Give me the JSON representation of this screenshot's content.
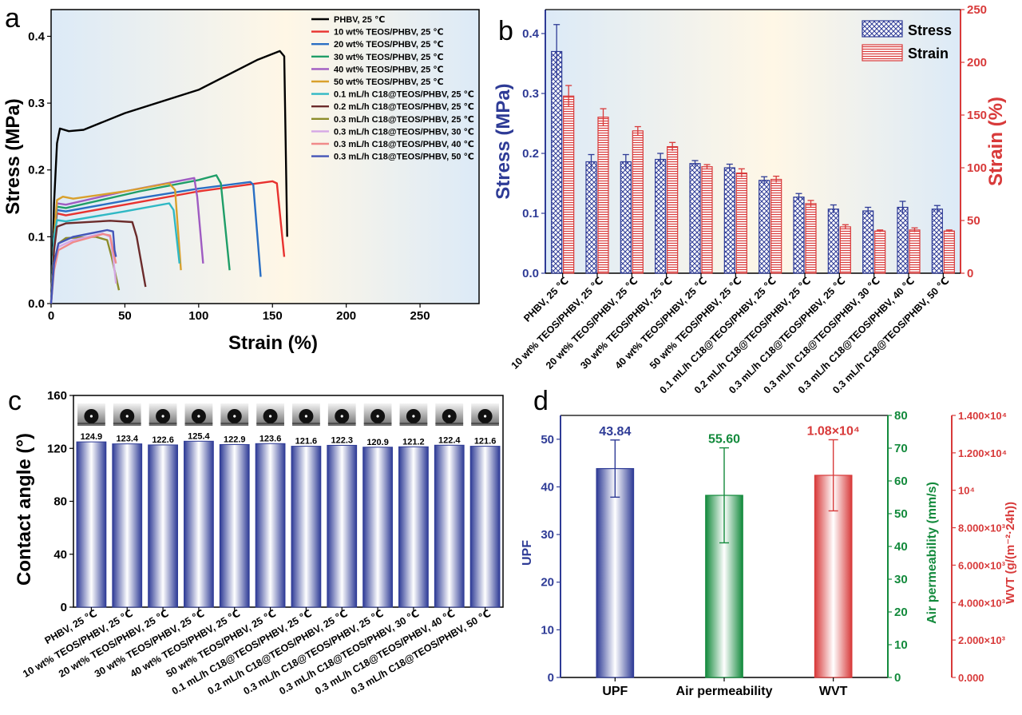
{
  "panel_letters": [
    "a",
    "b",
    "c",
    "d"
  ],
  "colors": {
    "blue": "#2e3b96",
    "red": "#d83a3a",
    "green": "#138a3c",
    "black": "#000000"
  },
  "chart_data": [
    {
      "panel": "a",
      "type": "line",
      "xlabel": "Strain (%)",
      "ylabel": "Stress (MPa)",
      "xlim": [
        0,
        290
      ],
      "ylim": [
        0,
        0.44
      ],
      "xticks": [
        "0",
        "50",
        "100",
        "150",
        "200",
        "250"
      ],
      "xtick_values": [
        0,
        50,
        100,
        150,
        200,
        250
      ],
      "yticks": [
        "0.0",
        "0.1",
        "0.2",
        "0.3",
        "0.4"
      ],
      "ytick_values": [
        0,
        0.1,
        0.2,
        0.3,
        0.4
      ],
      "legend_position": "top-right",
      "series": [
        {
          "name": "PHBV, 25 ℃",
          "color": "#000000",
          "points": [
            [
              0,
              0
            ],
            [
              2,
              0.15
            ],
            [
              4,
              0.24
            ],
            [
              6,
              0.262
            ],
            [
              12,
              0.258
            ],
            [
              22,
              0.26
            ],
            [
              50,
              0.285
            ],
            [
              100,
              0.32
            ],
            [
              140,
              0.365
            ],
            [
              155,
              0.378
            ],
            [
              158,
              0.37
            ],
            [
              160,
              0.1
            ]
          ]
        },
        {
          "name": "10 wt% TEOS/PHBV, 25 ℃",
          "color": "#e8322f",
          "points": [
            [
              0,
              0
            ],
            [
              2,
              0.1
            ],
            [
              4,
              0.135
            ],
            [
              10,
              0.132
            ],
            [
              50,
              0.148
            ],
            [
              100,
              0.168
            ],
            [
              150,
              0.183
            ],
            [
              153,
              0.18
            ],
            [
              158,
              0.07
            ]
          ]
        },
        {
          "name": "20 wt% TEOS/PHBV, 25 ℃",
          "color": "#2a6fc4",
          "points": [
            [
              0,
              0
            ],
            [
              2,
              0.1
            ],
            [
              4,
              0.14
            ],
            [
              10,
              0.138
            ],
            [
              60,
              0.158
            ],
            [
              100,
              0.172
            ],
            [
              135,
              0.182
            ],
            [
              137,
              0.178
            ],
            [
              142,
              0.04
            ]
          ]
        },
        {
          "name": "30 wt% TEOS/PHBV, 25 ℃",
          "color": "#1f9e68",
          "points": [
            [
              0,
              0
            ],
            [
              2,
              0.1
            ],
            [
              4,
              0.145
            ],
            [
              10,
              0.143
            ],
            [
              60,
              0.168
            ],
            [
              100,
              0.185
            ],
            [
              112,
              0.192
            ],
            [
              115,
              0.18
            ],
            [
              121,
              0.05
            ]
          ]
        },
        {
          "name": "40 wt% TEOS/PHBV, 25 ℃",
          "color": "#9f5bc2",
          "points": [
            [
              0,
              0
            ],
            [
              2,
              0.1
            ],
            [
              4,
              0.15
            ],
            [
              10,
              0.148
            ],
            [
              50,
              0.168
            ],
            [
              90,
              0.185
            ],
            [
              97,
              0.188
            ],
            [
              99,
              0.16
            ],
            [
              103,
              0.06
            ]
          ]
        },
        {
          "name": "50 wt% TEOS/PHBV, 25 ℃",
          "color": "#d9a02c",
          "points": [
            [
              0,
              0
            ],
            [
              2,
              0.1
            ],
            [
              4,
              0.155
            ],
            [
              8,
              0.16
            ],
            [
              15,
              0.157
            ],
            [
              50,
              0.168
            ],
            [
              80,
              0.18
            ],
            [
              84,
              0.17
            ],
            [
              88,
              0.05
            ]
          ]
        },
        {
          "name": "0.1 mL/h C18@TEOS/PHBV, 25 ℃",
          "color": "#2fb8c4",
          "points": [
            [
              0,
              0
            ],
            [
              2,
              0.1
            ],
            [
              4,
              0.125
            ],
            [
              10,
              0.123
            ],
            [
              50,
              0.138
            ],
            [
              80,
              0.15
            ],
            [
              83,
              0.14
            ],
            [
              87,
              0.06
            ]
          ]
        },
        {
          "name": "0.2 mL/h C18@TEOS/PHBV, 25 ℃",
          "color": "#6b2b2b",
          "points": [
            [
              0,
              0
            ],
            [
              2,
              0.08
            ],
            [
              4,
              0.115
            ],
            [
              10,
              0.12
            ],
            [
              40,
              0.124
            ],
            [
              55,
              0.122
            ],
            [
              58,
              0.1
            ],
            [
              64,
              0.025
            ]
          ]
        },
        {
          "name": "0.3 mL/h C18@TEOS/PHBV, 25 ℃",
          "color": "#8c8c2a",
          "points": [
            [
              0,
              0
            ],
            [
              2,
              0.06
            ],
            [
              5,
              0.09
            ],
            [
              10,
              0.098
            ],
            [
              30,
              0.1
            ],
            [
              38,
              0.095
            ],
            [
              41,
              0.07
            ],
            [
              46,
              0.02
            ]
          ]
        },
        {
          "name": "0.3 mL/h C18@TEOS/PHBV, 30 ℃",
          "color": "#d5a8e6",
          "points": [
            [
              0,
              0
            ],
            [
              2,
              0.06
            ],
            [
              5,
              0.085
            ],
            [
              15,
              0.095
            ],
            [
              35,
              0.105
            ],
            [
              40,
              0.1
            ],
            [
              42,
              0.07
            ],
            [
              44,
              0.03
            ]
          ]
        },
        {
          "name": "0.3 mL/h C18@TEOS/PHBV, 40 ℃",
          "color": "#f08a8a",
          "points": [
            [
              0,
              0
            ],
            [
              2,
              0.05
            ],
            [
              5,
              0.08
            ],
            [
              15,
              0.092
            ],
            [
              35,
              0.104
            ],
            [
              40,
              0.102
            ],
            [
              42,
              0.08
            ],
            [
              44,
              0.06
            ]
          ]
        },
        {
          "name": "0.3 mL/h C18@TEOS/PHBV, 50 ℃",
          "color": "#4455b8",
          "points": [
            [
              0,
              0
            ],
            [
              2,
              0.06
            ],
            [
              5,
              0.09
            ],
            [
              15,
              0.1
            ],
            [
              38,
              0.11
            ],
            [
              42,
              0.108
            ],
            [
              43,
              0.08
            ],
            [
              44,
              0.07
            ]
          ]
        }
      ]
    },
    {
      "panel": "b",
      "type": "bar",
      "ylabel": "Stress (MPa)",
      "y2label": "Strain (%)",
      "ylim": [
        0,
        0.44
      ],
      "y2lim": [
        0,
        250
      ],
      "yticks": [
        "0.0",
        "0.1",
        "0.2",
        "0.3",
        "0.4"
      ],
      "ytick_values": [
        0,
        0.1,
        0.2,
        0.3,
        0.4
      ],
      "y2ticks": [
        "0",
        "50",
        "100",
        "150",
        "200",
        "250"
      ],
      "y2tick_values": [
        0,
        50,
        100,
        150,
        200,
        250
      ],
      "legend_position": "top-right",
      "categories": [
        "PHBV, 25 ℃",
        "10 wt% TEOS/PHBV, 25 ℃",
        "20 wt% TEOS/PHBV, 25 ℃",
        "30 wt% TEOS/PHBV, 25 ℃",
        "40 wt% TEOS/PHBV, 25 ℃",
        "50 wt% TEOS/PHBV, 25 ℃",
        "0.1 mL/h C18@TEOS/PHBV, 25 ℃",
        "0.2 mL/h C18@TEOS/PHBV, 25 ℃",
        "0.3 mL/h C18@TEOS/PHBV, 25 ℃",
        "0.3 mL/h C18@TEOS/PHBV, 30 ℃",
        "0.3 mL/h C18@TEOS/PHBV, 40 ℃",
        "0.3 mL/h C18@TEOS/PHBV, 50 ℃"
      ],
      "series": [
        {
          "name": "Stress",
          "axis": "left",
          "values": [
            0.37,
            0.186,
            0.186,
            0.19,
            0.183,
            0.176,
            0.155,
            0.127,
            0.107,
            0.104,
            0.11,
            0.107
          ],
          "errors": [
            0.045,
            0.012,
            0.012,
            0.01,
            0.005,
            0.006,
            0.006,
            0.006,
            0.007,
            0.006,
            0.01,
            0.006
          ]
        },
        {
          "name": "Strain",
          "axis": "right",
          "values": [
            168,
            148,
            135,
            120,
            101,
            95,
            89,
            66,
            44,
            40,
            41,
            40
          ],
          "errors": [
            10,
            8,
            4,
            4,
            2,
            4,
            3,
            3,
            2,
            1,
            2,
            1
          ]
        }
      ]
    },
    {
      "panel": "c",
      "type": "bar",
      "ylabel": "Contact angle (°)",
      "ylim": [
        0,
        160
      ],
      "yticks": [
        "0",
        "40",
        "80",
        "120",
        "160"
      ],
      "ytick_values": [
        0,
        40,
        80,
        120,
        160
      ],
      "categories": [
        "PHBV, 25 ℃",
        "10 wt% TEOS/PHBV, 25 ℃",
        "20 wt% TEOS/PHBV, 25 ℃",
        "30 wt% TEOS/PHBV, 25 ℃",
        "40 wt% TEOS/PHBV, 25 ℃",
        "50 wt% TEOS/PHBV, 25 ℃",
        "0.1 mL/h C18@TEOS/PHBV, 25 ℃",
        "0.2 mL/h C18@TEOS/PHBV, 25 ℃",
        "0.3 mL/h C18@TEOS/PHBV, 25 ℃",
        "0.3 mL/h C18@TEOS/PHBV, 30 ℃",
        "0.3 mL/h C18@TEOS/PHBV, 40 ℃",
        "0.3 mL/h C18@TEOS/PHBV, 50 ℃"
      ],
      "values": [
        124.9,
        123.4,
        122.6,
        125.4,
        122.9,
        123.6,
        121.6,
        122.3,
        120.9,
        121.2,
        122.4,
        121.6
      ],
      "value_labels": [
        "124.9",
        "123.4",
        "122.6",
        "125.4",
        "122.9",
        "123.6",
        "121.6",
        "122.3",
        "120.9",
        "121.2",
        "122.4",
        "121.6"
      ]
    },
    {
      "panel": "d",
      "type": "bar",
      "categories": [
        "UPF",
        "Air permeability",
        "WVT"
      ],
      "axes": [
        {
          "label": "UPF",
          "lim": [
            0,
            55
          ],
          "ticks": [
            "0",
            "10",
            "20",
            "30",
            "40",
            "50"
          ],
          "tick_values": [
            0,
            10,
            20,
            30,
            40,
            50
          ],
          "color": "#2e3b96"
        },
        {
          "label": "Air permeability (mm/s)",
          "lim": [
            0,
            80
          ],
          "ticks": [
            "0",
            "10",
            "20",
            "30",
            "40",
            "50",
            "60",
            "70",
            "80"
          ],
          "tick_values": [
            0,
            10,
            20,
            30,
            40,
            50,
            60,
            70,
            80
          ],
          "color": "#138a3c"
        },
        {
          "label": "WVT (g/(m⁻²·24h))",
          "lim": [
            0,
            14000
          ],
          "ticks": [
            "0.000",
            "2.000×10³",
            "4.000×10³",
            "6.000×10³",
            "8.000×10³",
            "10⁴",
            "1.200×10⁴",
            "1.400×10⁴"
          ],
          "tick_values": [
            0,
            2000,
            4000,
            6000,
            8000,
            10000,
            12000,
            14000
          ],
          "color": "#d83a3a"
        }
      ],
      "values": [
        43.84,
        55.6,
        10800
      ],
      "errors": [
        6,
        14.5,
        1900
      ],
      "value_labels": [
        "43.84",
        "55.60",
        "1.08×10⁴"
      ]
    }
  ]
}
